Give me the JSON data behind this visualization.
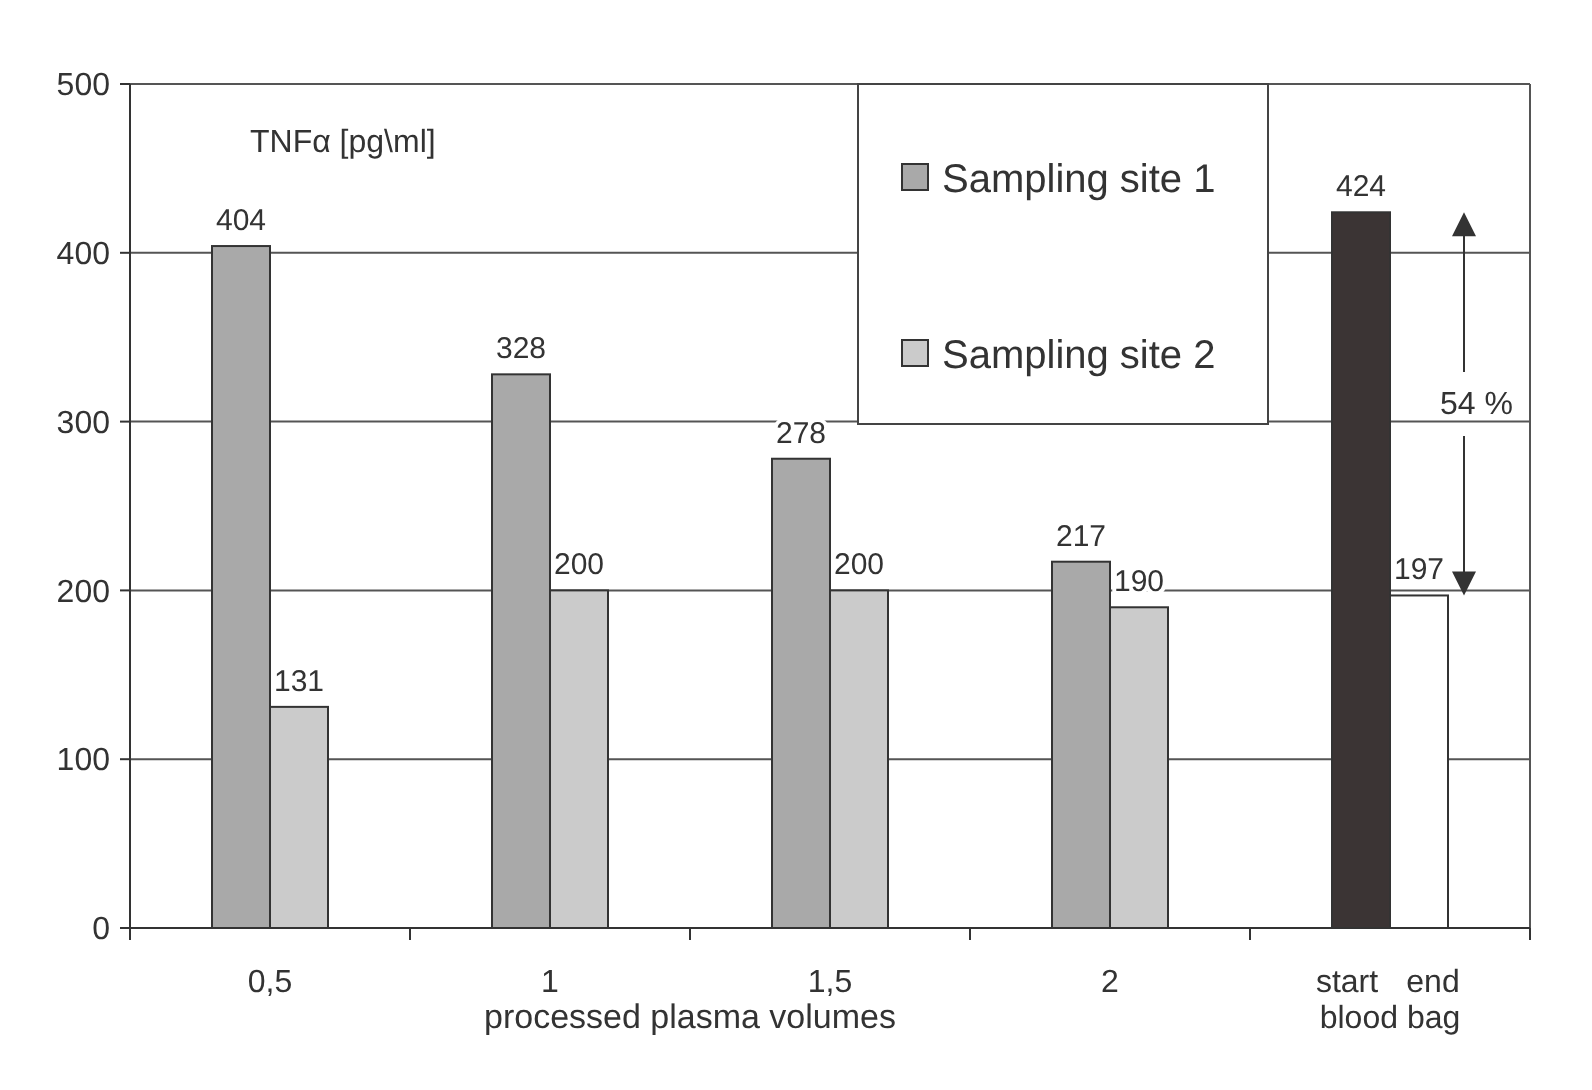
{
  "chart_data": {
    "type": "bar",
    "ylabel": "TNFα [pg\\ml]",
    "xlabel": "processed plasma volumes",
    "categories": [
      "0,5",
      "1",
      "1,5",
      "2",
      "blood bag"
    ],
    "series": [
      {
        "name": "Sampling site 1",
        "color": "#a9a9a9",
        "values": [
          404,
          328,
          278,
          217,
          null
        ]
      },
      {
        "name": "Sampling site 2",
        "color": "#cbcbcb",
        "values": [
          131,
          200,
          200,
          190,
          null
        ]
      },
      {
        "name": "start",
        "color": "#3b3434",
        "values": [
          null,
          null,
          null,
          null,
          424
        ]
      },
      {
        "name": "end",
        "color": "#ffffff",
        "values": [
          null,
          null,
          null,
          null,
          197
        ]
      }
    ],
    "ylim": [
      0,
      500
    ],
    "yticks": [
      0,
      100,
      200,
      300,
      400,
      500
    ],
    "grid": "y",
    "legend": "top right",
    "data_labels": true,
    "annotations": [
      "54 %"
    ]
  }
}
